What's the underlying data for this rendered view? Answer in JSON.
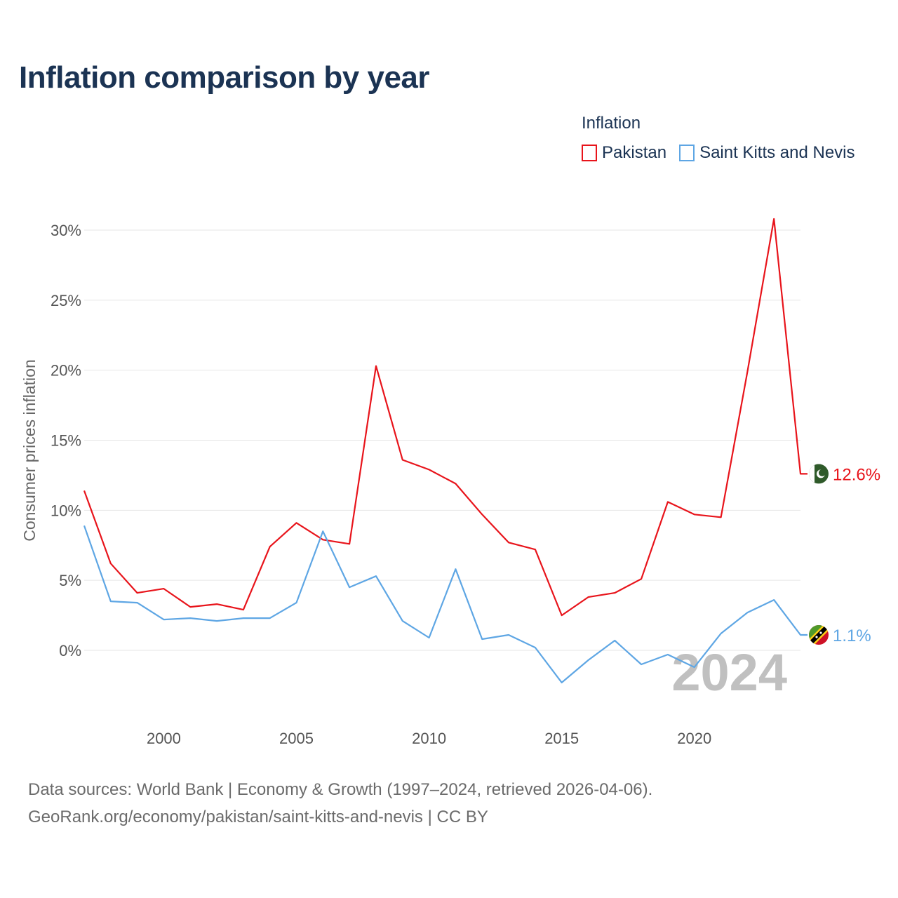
{
  "title": "Inflation comparison by year",
  "legend": {
    "title": "Inflation",
    "items": [
      {
        "label": "Pakistan",
        "color": "#e8141b"
      },
      {
        "label": "Saint Kitts and Nevis",
        "color": "#5ea6e4"
      }
    ]
  },
  "footer": {
    "line1": "Data sources: World Bank | Economy & Growth (1997–2024, retrieved 2026-04-06).",
    "line2": "GeoRank.org/economy/pakistan/saint-kitts-and-nevis | CC BY"
  },
  "chart_data": {
    "type": "line",
    "title": "Inflation comparison by year",
    "xlabel": "",
    "ylabel": "Consumer prices inflation",
    "xlim": [
      1997,
      2024
    ],
    "ylim": [
      -4.5,
      31.5
    ],
    "y_ticks": [
      0,
      5,
      10,
      15,
      20,
      25,
      30
    ],
    "y_tick_labels": [
      "0%",
      "5%",
      "10%",
      "15%",
      "20%",
      "25%",
      "30%"
    ],
    "x_ticks": [
      2000,
      2005,
      2010,
      2015,
      2020
    ],
    "x_tick_labels": [
      "2000",
      "2005",
      "2010",
      "2015",
      "2020"
    ],
    "grid": "horizontal",
    "legend_position": "top-right",
    "watermark_year": "2024",
    "x": [
      1997,
      1998,
      1999,
      2000,
      2001,
      2002,
      2003,
      2004,
      2005,
      2006,
      2007,
      2008,
      2009,
      2010,
      2011,
      2012,
      2013,
      2014,
      2015,
      2016,
      2017,
      2018,
      2019,
      2020,
      2021,
      2022,
      2023,
      2024
    ],
    "series": [
      {
        "name": "Pakistan",
        "color": "#e8141b",
        "end_label": "12.6%",
        "flag": "pakistan-flag-icon",
        "values": [
          11.4,
          6.2,
          4.1,
          4.4,
          3.1,
          3.3,
          2.9,
          7.4,
          9.1,
          7.9,
          7.6,
          20.3,
          13.6,
          12.9,
          11.9,
          9.7,
          7.7,
          7.2,
          2.5,
          3.8,
          4.1,
          5.1,
          10.6,
          9.7,
          9.5,
          19.9,
          30.8,
          12.6
        ]
      },
      {
        "name": "Saint Kitts and Nevis",
        "color": "#5ea6e4",
        "end_label": "1.1%",
        "flag": "saint-kitts-flag-icon",
        "values": [
          8.9,
          3.5,
          3.4,
          2.2,
          2.3,
          2.1,
          2.3,
          2.3,
          3.4,
          8.5,
          4.5,
          5.3,
          2.1,
          0.9,
          5.8,
          0.8,
          1.1,
          0.2,
          -2.3,
          -0.7,
          0.7,
          -1.0,
          -0.3,
          -1.2,
          1.2,
          2.7,
          3.6,
          1.1
        ]
      }
    ]
  }
}
